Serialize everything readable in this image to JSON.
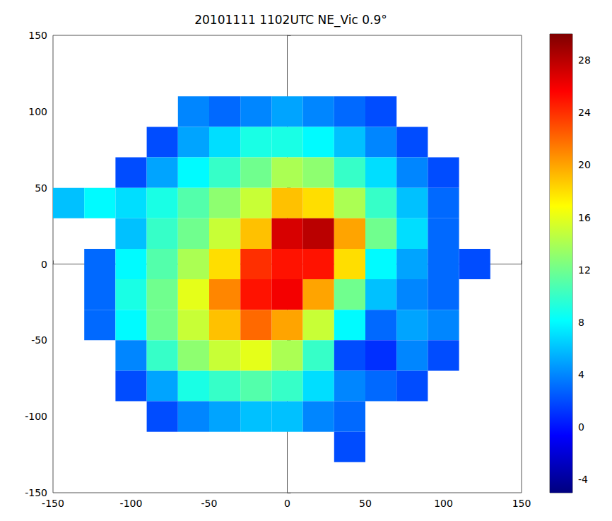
{
  "chart_data": {
    "type": "heatmap",
    "title": "20101111 1102UTC NE_Vic 0.9°",
    "x": [
      -140,
      -120,
      -100,
      -80,
      -60,
      -40,
      -20,
      0,
      20,
      40,
      60,
      80,
      100,
      120,
      140
    ],
    "y": [
      140,
      120,
      100,
      80,
      60,
      40,
      20,
      0,
      -20,
      -40,
      -60,
      -80,
      -100,
      -120,
      -140
    ],
    "cells": [
      [
        null,
        null,
        null,
        null,
        null,
        null,
        null,
        null,
        null,
        null,
        null,
        null,
        null,
        null,
        null
      ],
      [
        null,
        null,
        null,
        null,
        null,
        null,
        null,
        null,
        null,
        null,
        null,
        null,
        null,
        null,
        null
      ],
      [
        null,
        null,
        null,
        null,
        4,
        3,
        4,
        5,
        4,
        3,
        2,
        null,
        null,
        null,
        null
      ],
      [
        null,
        null,
        null,
        2,
        5,
        7,
        9,
        9,
        8,
        6,
        4,
        2,
        null,
        null,
        null
      ],
      [
        null,
        null,
        2,
        5,
        8,
        10,
        12,
        14,
        13,
        10,
        7,
        4,
        2,
        null,
        null
      ],
      [
        6,
        8,
        7,
        9,
        11,
        13,
        15,
        19,
        18,
        14,
        10,
        6,
        3,
        null,
        null
      ],
      [
        null,
        null,
        6,
        10,
        12,
        15,
        19,
        27,
        28,
        20,
        12,
        7,
        3,
        null,
        null
      ],
      [
        null,
        3,
        8,
        11,
        14,
        18,
        24,
        25,
        25,
        18,
        8,
        5,
        3,
        2,
        null
      ],
      [
        null,
        3,
        9,
        12,
        16,
        21,
        25,
        26,
        20,
        12,
        6,
        4,
        3,
        null,
        null
      ],
      [
        null,
        3,
        8,
        12,
        15,
        19,
        22,
        20,
        15,
        8,
        3,
        5,
        4,
        null,
        null
      ],
      [
        null,
        null,
        4,
        10,
        13,
        15,
        16,
        14,
        10,
        2,
        1,
        4,
        2,
        null,
        null
      ],
      [
        null,
        null,
        2,
        5,
        9,
        10,
        11,
        10,
        7,
        4,
        3,
        2,
        null,
        null,
        null
      ],
      [
        null,
        null,
        null,
        2,
        4,
        5,
        6,
        6,
        4,
        3,
        null,
        null,
        null,
        null,
        null
      ],
      [
        null,
        null,
        null,
        null,
        null,
        null,
        null,
        null,
        null,
        2,
        null,
        null,
        null,
        null,
        null
      ],
      [
        null,
        null,
        null,
        null,
        null,
        null,
        null,
        null,
        null,
        null,
        null,
        null,
        null,
        null,
        null
      ]
    ],
    "xlim": [
      -150,
      150
    ],
    "ylim": [
      -150,
      150
    ],
    "xticks": [
      -150,
      -100,
      -50,
      0,
      50,
      100,
      150
    ],
    "yticks": [
      -150,
      -100,
      -50,
      0,
      50,
      100,
      150
    ],
    "colorbar": {
      "range": [
        -5,
        30
      ],
      "ticks": [
        -4,
        0,
        4,
        8,
        12,
        16,
        20,
        24,
        28
      ]
    },
    "grid": false
  }
}
